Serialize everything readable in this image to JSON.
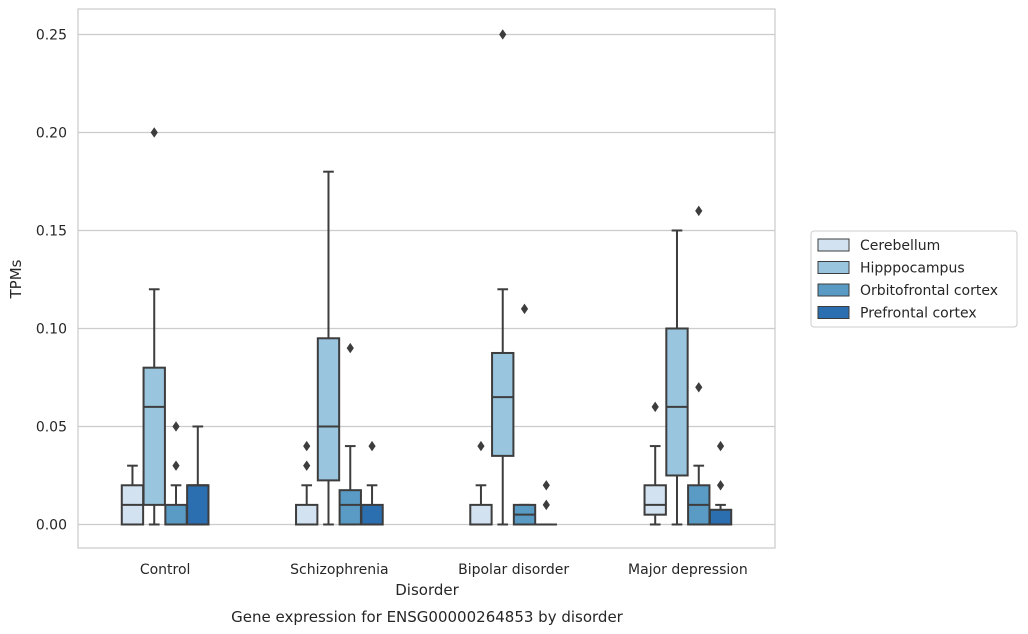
{
  "caption": "Gene expression for ENSG00000264853 by disorder",
  "chart_data": {
    "type": "box",
    "xlabel": "Disorder",
    "ylabel": "TPMs",
    "categories": [
      "Control",
      "Schizophrenia",
      "Bipolar disorder",
      "Major depression"
    ],
    "ylim": [
      -0.012,
      0.263
    ],
    "yticks": [
      0.0,
      0.05,
      0.1,
      0.15,
      0.2,
      0.25
    ],
    "ytick_labels": [
      "0.00",
      "0.05",
      "0.10",
      "0.15",
      "0.20",
      "0.25"
    ],
    "grid": "horizontal",
    "legend": {
      "placement": "outside-right"
    },
    "series": [
      {
        "name": "Cerebellum",
        "color": "#d2e2f1",
        "boxes": [
          {
            "category": "Control",
            "whisker_low": 0.0,
            "q1": 0.0,
            "median": 0.01,
            "q3": 0.02,
            "whisker_high": 0.03,
            "outliers": []
          },
          {
            "category": "Schizophrenia",
            "whisker_low": 0.0,
            "q1": 0.0,
            "median": 0.0,
            "q3": 0.01,
            "whisker_high": 0.02,
            "outliers": [
              0.03,
              0.04
            ]
          },
          {
            "category": "Bipolar disorder",
            "whisker_low": 0.0,
            "q1": 0.0,
            "median": 0.0,
            "q3": 0.01,
            "whisker_high": 0.02,
            "outliers": [
              0.04
            ]
          },
          {
            "category": "Major depression",
            "whisker_low": 0.0,
            "q1": 0.005,
            "median": 0.01,
            "q3": 0.02,
            "whisker_high": 0.04,
            "outliers": [
              0.06
            ]
          }
        ]
      },
      {
        "name": "Hipppocampus",
        "color": "#9ac5de",
        "boxes": [
          {
            "category": "Control",
            "whisker_low": 0.0,
            "q1": 0.01,
            "median": 0.06,
            "q3": 0.08,
            "whisker_high": 0.12,
            "outliers": [
              0.2
            ]
          },
          {
            "category": "Schizophrenia",
            "whisker_low": 0.0,
            "q1": 0.0225,
            "median": 0.05,
            "q3": 0.095,
            "whisker_high": 0.18,
            "outliers": []
          },
          {
            "category": "Bipolar disorder",
            "whisker_low": 0.0,
            "q1": 0.035,
            "median": 0.065,
            "q3": 0.0875,
            "whisker_high": 0.12,
            "outliers": [
              0.25
            ]
          },
          {
            "category": "Major depression",
            "whisker_low": 0.0,
            "q1": 0.025,
            "median": 0.06,
            "q3": 0.1,
            "whisker_high": 0.15,
            "outliers": []
          }
        ]
      },
      {
        "name": "Orbitofrontal cortex",
        "color": "#5a9bc6",
        "boxes": [
          {
            "category": "Control",
            "whisker_low": 0.0,
            "q1": 0.0,
            "median": 0.0,
            "q3": 0.01,
            "whisker_high": 0.02,
            "outliers": [
              0.03,
              0.05
            ]
          },
          {
            "category": "Schizophrenia",
            "whisker_low": 0.0,
            "q1": 0.0,
            "median": 0.01,
            "q3": 0.0175,
            "whisker_high": 0.04,
            "outliers": [
              0.09
            ]
          },
          {
            "category": "Bipolar disorder",
            "whisker_low": 0.0,
            "q1": 0.0,
            "median": 0.005,
            "q3": 0.01,
            "whisker_high": 0.01,
            "outliers": [
              0.11
            ]
          },
          {
            "category": "Major depression",
            "whisker_low": 0.0,
            "q1": 0.0,
            "median": 0.01,
            "q3": 0.02,
            "whisker_high": 0.03,
            "outliers": [
              0.07,
              0.16
            ]
          }
        ]
      },
      {
        "name": "Prefrontal cortex",
        "color": "#2c6fb0",
        "boxes": [
          {
            "category": "Control",
            "whisker_low": 0.0,
            "q1": 0.0,
            "median": 0.02,
            "q3": 0.02,
            "whisker_high": 0.05,
            "outliers": []
          },
          {
            "category": "Schizophrenia",
            "whisker_low": 0.0,
            "q1": 0.0,
            "median": 0.0,
            "q3": 0.01,
            "whisker_high": 0.02,
            "outliers": [
              0.04
            ]
          },
          {
            "category": "Bipolar disorder",
            "whisker_low": 0.0,
            "q1": 0.0,
            "median": 0.0,
            "q3": 0.0,
            "whisker_high": 0.0,
            "outliers": [
              0.01,
              0.02
            ]
          },
          {
            "category": "Major depression",
            "whisker_low": 0.0,
            "q1": 0.0,
            "median": 0.0,
            "q3": 0.0075,
            "whisker_high": 0.01,
            "outliers": [
              0.02,
              0.04
            ]
          }
        ]
      }
    ]
  }
}
